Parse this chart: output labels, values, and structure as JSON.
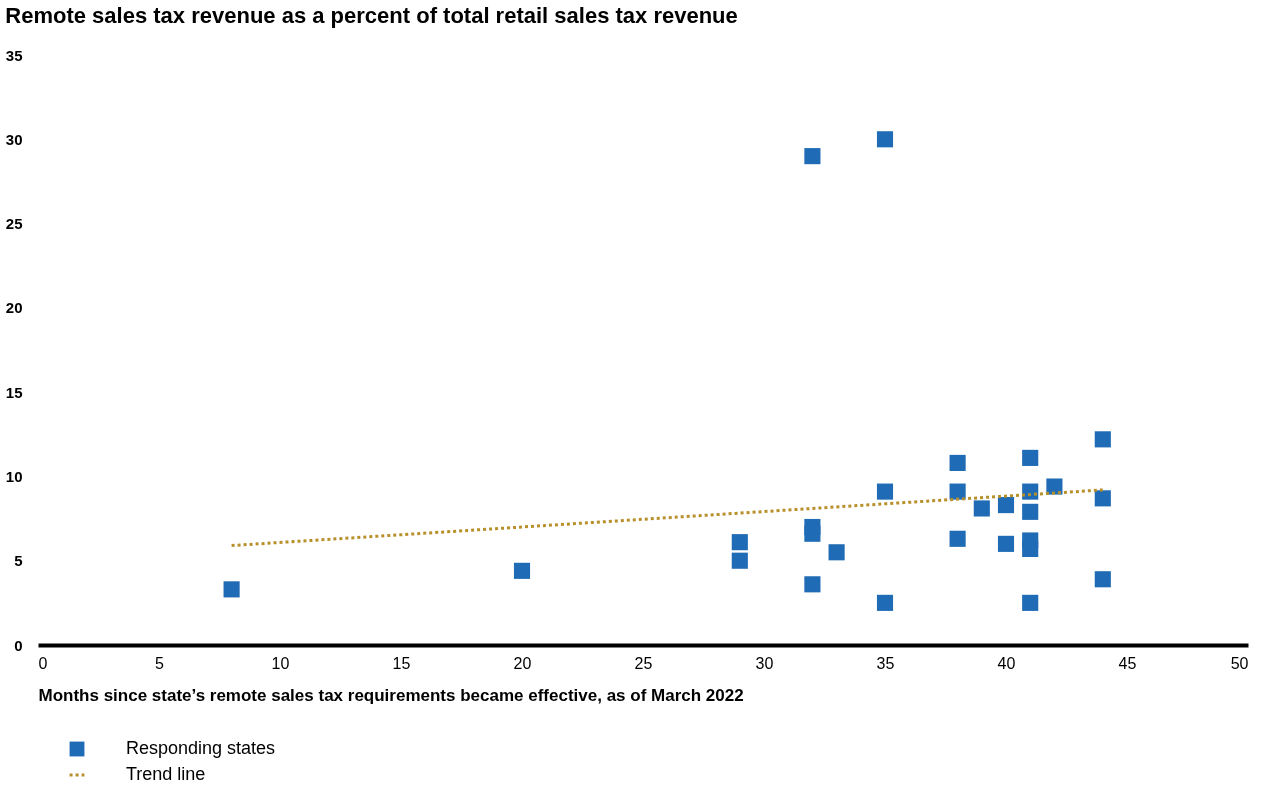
{
  "chart_data": {
    "type": "scatter",
    "title": "Remote sales tax revenue as a percent of total retail sales tax revenue",
    "xlabel": "Months since state’s remote sales tax requirements became effective, as of March 2022",
    "xlim": [
      0,
      50
    ],
    "xticks": [
      0,
      5,
      10,
      15,
      20,
      25,
      30,
      35,
      40,
      45,
      50
    ],
    "ylim": [
      0,
      35
    ],
    "yticks": [
      0,
      5,
      10,
      15,
      20,
      25,
      30,
      35
    ],
    "grid": false,
    "legend": "bottom left",
    "series": [
      {
        "name": "Responding states",
        "type": "scatter",
        "marker": "square",
        "color": "#1f6bb5",
        "x": [
          8,
          20,
          29,
          29,
          32,
          32,
          32,
          32,
          33,
          35,
          35,
          35,
          38,
          38,
          38,
          39,
          40,
          40,
          41,
          41,
          41,
          41,
          41,
          41,
          42,
          44,
          44,
          44
        ],
        "values": [
          3.3,
          4.4,
          6.1,
          5.0,
          29.0,
          7.0,
          6.6,
          3.6,
          5.5,
          30.0,
          9.1,
          2.5,
          10.8,
          9.1,
          6.3,
          8.1,
          8.3,
          6.0,
          11.1,
          9.1,
          7.9,
          6.2,
          5.7,
          2.5,
          9.4,
          12.2,
          8.7,
          3.9
        ]
      },
      {
        "name": "Trend line",
        "type": "line",
        "color": "#b8902b",
        "line_style": "dotted",
        "marker": "none",
        "x": [
          8,
          44
        ],
        "values": [
          5.9,
          9.2
        ]
      }
    ]
  }
}
